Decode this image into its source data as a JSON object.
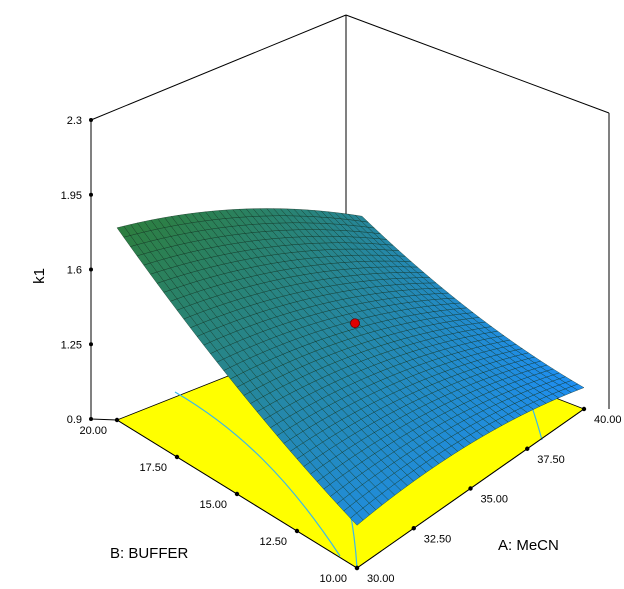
{
  "chart_data": {
    "type": "surface",
    "zlabel": "k1",
    "xlabel": "A: MeCN",
    "ylabel": "B: BUFFER",
    "x_range": [
      30.0,
      40.0
    ],
    "y_range": [
      10.0,
      20.0
    ],
    "zlim": [
      0.9,
      2.3
    ],
    "x_ticks": [
      "30.00",
      "32.50",
      "35.00",
      "37.50",
      "40.00"
    ],
    "y_ticks": [
      "10.00",
      "12.50",
      "15.00",
      "17.50",
      "20.00"
    ],
    "z_ticks": [
      "0.9",
      "1.25",
      "1.6",
      "1.95",
      "2.3"
    ],
    "surface_corners": [
      {
        "A": 30.0,
        "B": 10.0,
        "k1": 1.1
      },
      {
        "A": 40.0,
        "B": 10.0,
        "k1": 1.0
      },
      {
        "A": 30.0,
        "B": 20.0,
        "k1": 1.8
      },
      {
        "A": 40.0,
        "B": 20.0,
        "k1": 1.4
      }
    ],
    "design_point": {
      "A": 35.0,
      "B": 15.0,
      "k1": 1.4
    },
    "colors": {
      "surface_high": "#2e7d32",
      "surface_low": "#1e90ff",
      "floor": "#ffff00",
      "contour": "#3cb8e8",
      "design_point": "#e00000"
    }
  }
}
